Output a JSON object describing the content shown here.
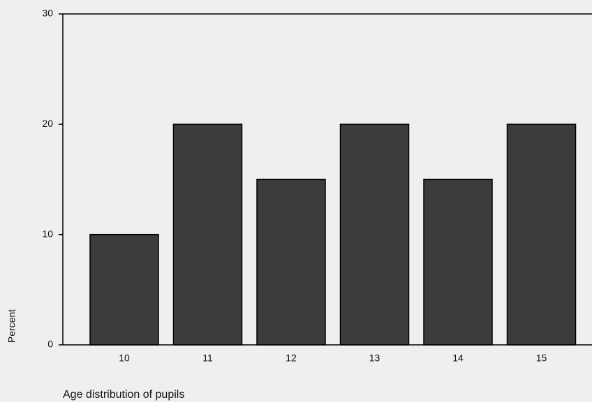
{
  "chart_data": {
    "type": "bar",
    "x_label": "Age distribution of pupils",
    "y_label": "Percent",
    "categories": [
      "10",
      "11",
      "12",
      "13",
      "14",
      "15"
    ],
    "values": [
      10,
      20,
      15,
      20,
      15,
      20
    ],
    "color": "#3c3c3c",
    "ylim": [
      0,
      30
    ],
    "yticks": [
      0,
      10,
      20,
      30
    ],
    "grid": false
  }
}
